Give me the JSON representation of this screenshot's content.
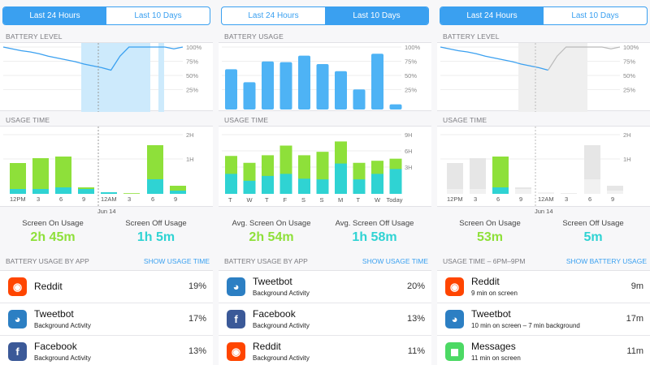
{
  "colors": {
    "accent": "#3aa0f0",
    "green": "#8ee03a",
    "teal": "#2fd3d3",
    "gray": "#e6e6e6"
  },
  "panels": [
    {
      "tabs": [
        "Last 24 Hours",
        "Last 10 Days"
      ],
      "active_tab": 0,
      "battery_label": "BATTERY LEVEL",
      "battery_ticks": [
        "100%",
        "75%",
        "50%",
        "25%"
      ],
      "usage_label": "USAGE TIME",
      "usage_ticks": [
        "2H",
        "1H"
      ],
      "usage_xlabels": [
        "12PM",
        "3",
        "6",
        "9",
        "12AM",
        "3",
        "6",
        "9"
      ],
      "date_label": "Jun 14",
      "stat_on_label": "Screen On Usage",
      "stat_on_value": "2h 45m",
      "stat_off_label": "Screen Off Usage",
      "stat_off_value": "1h 5m",
      "list_header": "BATTERY USAGE BY APP",
      "list_link": "SHOW USAGE TIME",
      "apps": [
        {
          "icon": "reddit-icon",
          "name": "Reddit",
          "sub": "",
          "value": "19%"
        },
        {
          "icon": "tweetbot-icon",
          "name": "Tweetbot",
          "sub": "Background Activity",
          "value": "17%"
        },
        {
          "icon": "facebook-icon",
          "name": "Facebook",
          "sub": "Background Activity",
          "value": "13%"
        }
      ]
    },
    {
      "tabs": [
        "Last 24 Hours",
        "Last 10 Days"
      ],
      "active_tab": 1,
      "battery_label": "BATTERY USAGE",
      "battery_ticks": [
        "100%",
        "75%",
        "50%",
        "25%"
      ],
      "usage_label": "USAGE TIME",
      "usage_ticks": [
        "9H",
        "6H",
        "3H"
      ],
      "usage_xlabels": [
        "T",
        "W",
        "T",
        "F",
        "S",
        "S",
        "M",
        "T",
        "W",
        "Today"
      ],
      "stat_on_label": "Avg. Screen On Usage",
      "stat_on_value": "2h 54m",
      "stat_off_label": "Avg. Screen Off Usage",
      "stat_off_value": "1h 58m",
      "list_header": "BATTERY USAGE BY APP",
      "list_link": "SHOW USAGE TIME",
      "apps": [
        {
          "icon": "tweetbot-icon",
          "name": "Tweetbot",
          "sub": "Background Activity",
          "value": "20%"
        },
        {
          "icon": "facebook-icon",
          "name": "Facebook",
          "sub": "Background Activity",
          "value": "13%"
        },
        {
          "icon": "reddit-icon",
          "name": "Reddit",
          "sub": "Background Activity",
          "value": "11%"
        }
      ]
    },
    {
      "tabs": [
        "Last 24 Hours",
        "Last 10 Days"
      ],
      "active_tab": 0,
      "battery_label": "BATTERY LEVEL",
      "battery_ticks": [
        "100%",
        "75%",
        "50%",
        "25%"
      ],
      "usage_label": "USAGE TIME",
      "usage_ticks": [
        "2H",
        "1H"
      ],
      "usage_xlabels": [
        "12PM",
        "3",
        "6",
        "9",
        "12AM",
        "3",
        "6",
        "9"
      ],
      "date_label": "Jun 14",
      "stat_on_label": "Screen On Usage",
      "stat_on_value": "53m",
      "stat_off_label": "Screen Off Usage",
      "stat_off_value": "5m",
      "list_header": "USAGE TIME – 6PM–9PM",
      "list_link": "SHOW BATTERY USAGE",
      "apps": [
        {
          "icon": "reddit-icon",
          "name": "Reddit",
          "sub": "9 min on screen",
          "value": "9m"
        },
        {
          "icon": "tweetbot-icon",
          "name": "Tweetbot",
          "sub": "10 min on screen – 7 min background",
          "value": "17m"
        },
        {
          "icon": "messages-icon",
          "name": "Messages",
          "sub": "11 min on screen",
          "value": "11m"
        }
      ]
    }
  ],
  "chart_data": [
    {
      "type": "line",
      "title": "BATTERY LEVEL",
      "ylabel": "",
      "ylim": [
        0,
        100
      ],
      "x": [
        0,
        0.5,
        1,
        1.5,
        2,
        2.5,
        3,
        3.5,
        4,
        4.5,
        5,
        5.5,
        6,
        6.5,
        7,
        7.5,
        8,
        8.5,
        9,
        9.5,
        10
      ],
      "values": [
        100,
        97,
        94,
        92,
        89,
        85,
        82,
        79,
        76,
        72,
        69,
        66,
        62,
        85,
        100,
        100,
        100,
        100,
        100,
        97,
        100
      ]
    },
    {
      "type": "bar",
      "title": "USAGE TIME",
      "ylim": [
        0,
        2
      ],
      "series": [
        {
          "name": "",
          "values": [
            0.95,
            1.1,
            1.15,
            0.2,
            0.05,
            0.02,
            1.5,
            0.25
          ]
        },
        {
          "name": "",
          "values": [
            0.15,
            0.15,
            0.2,
            0.15,
            0.05,
            0.0,
            0.45,
            0.1
          ]
        }
      ]
    },
    {
      "type": "bar",
      "title": "BATTERY USAGE",
      "ylim": [
        0,
        100
      ],
      "categories": [
        "T",
        "W",
        "T",
        "F",
        "S",
        "S",
        "M",
        "T",
        "W",
        "Today"
      ],
      "values": [
        62,
        42,
        74,
        73,
        83,
        70,
        59,
        31,
        86,
        8
      ]
    },
    {
      "type": "bar",
      "title": "USAGE TIME",
      "ylim": [
        0,
        9
      ],
      "categories": [
        "T",
        "W",
        "T",
        "F",
        "S",
        "S",
        "M",
        "T",
        "W",
        "Today"
      ],
      "series": [
        {
          "name": "",
          "values": [
            5.5,
            4.5,
            5.6,
            7.0,
            5.6,
            6.1,
            7.6,
            4.5,
            4.8,
            5.1
          ]
        },
        {
          "name": "",
          "values": [
            2.9,
            1.9,
            2.6,
            2.9,
            2.2,
            2.1,
            4.4,
            2.1,
            2.9,
            3.6
          ]
        }
      ]
    }
  ]
}
